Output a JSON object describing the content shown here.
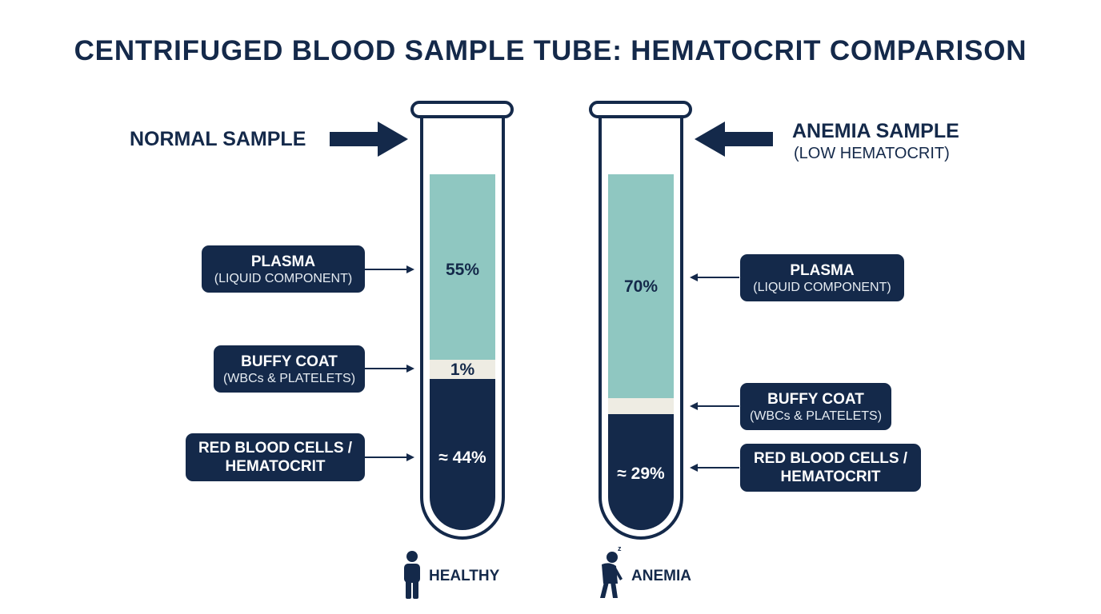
{
  "title": "CENTRIFUGED BLOOD SAMPLE TUBE: HEMATOCRIT COMPARISON",
  "colors": {
    "navy": "#14294a",
    "plasma": "#8fc7c1",
    "buffy_coat": "#eeece3",
    "rbc": "#14294a"
  },
  "normal": {
    "label": "NORMAL SAMPLE",
    "plasma": {
      "title": "PLASMA",
      "subtitle": "(LIQUID COMPONENT)",
      "value": "55%",
      "fraction": 0.55
    },
    "buffy": {
      "title": "BUFFY COAT",
      "subtitle": "(WBCs & PLATELETS)",
      "value": "1%",
      "fraction": 0.01
    },
    "rbc": {
      "title_line1": "RED BLOOD CELLS /",
      "title_line2": "HEMATOCRIT",
      "value": "≈ 44%",
      "fraction": 0.44
    },
    "footer": "HEALTHY",
    "footer_icon": "standing-person-icon"
  },
  "anemia": {
    "label": "ANEMIA SAMPLE",
    "sublabel": "(LOW HEMATOCRIT)",
    "plasma": {
      "title": "PLASMA",
      "subtitle": "(LIQUID COMPONENT)",
      "value": "70%",
      "fraction": 0.7
    },
    "buffy": {
      "title": "BUFFY COAT",
      "subtitle": "(WBCs & PLATELETS)",
      "fraction": 0.01
    },
    "rbc": {
      "title_line1": "RED BLOOD CELLS /",
      "title_line2": "HEMATOCRIT",
      "value": "≈ 29%",
      "fraction": 0.29
    },
    "footer": "ANEMIA",
    "footer_icon": "tired-person-icon"
  }
}
